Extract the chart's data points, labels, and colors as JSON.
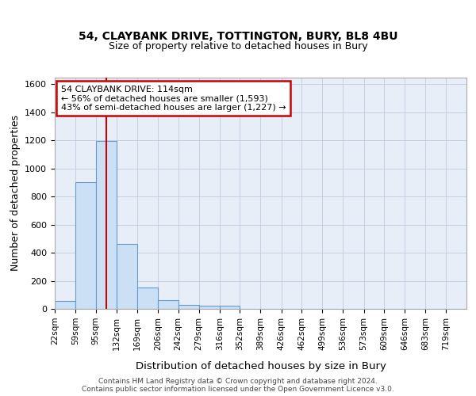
{
  "title1": "54, CLAYBANK DRIVE, TOTTINGTON, BURY, BL8 4BU",
  "title2": "Size of property relative to detached houses in Bury",
  "xlabel": "Distribution of detached houses by size in Bury",
  "ylabel": "Number of detached properties",
  "annotation_line1": "54 CLAYBANK DRIVE: 114sqm",
  "annotation_line2": "← 56% of detached houses are smaller (1,593)",
  "annotation_line3": "43% of semi-detached houses are larger (1,227) →",
  "bin_edges": [
    22,
    59,
    95,
    132,
    169,
    206,
    242,
    279,
    316,
    352,
    389,
    426,
    462,
    499,
    536,
    573,
    609,
    646,
    683,
    719,
    756
  ],
  "bar_heights": [
    55,
    900,
    1195,
    465,
    150,
    60,
    30,
    20,
    20,
    0,
    0,
    0,
    0,
    0,
    0,
    0,
    0,
    0,
    0,
    0
  ],
  "bar_color": "#cce0f5",
  "bar_edge_color": "#6699cc",
  "vline_color": "#cc0000",
  "vline_x": 114,
  "ylim": [
    0,
    1650
  ],
  "yticks": [
    0,
    200,
    400,
    600,
    800,
    1000,
    1200,
    1400,
    1600
  ],
  "footer1": "Contains HM Land Registry data © Crown copyright and database right 2024.",
  "footer2": "Contains public sector information licensed under the Open Government Licence v3.0.",
  "fig_bg_color": "#ffffff",
  "plot_bg_color": "#e8eef8",
  "annotation_box_color": "#ffffff",
  "annotation_box_edge": "#cc0000",
  "grid_color": "#c0cce0"
}
